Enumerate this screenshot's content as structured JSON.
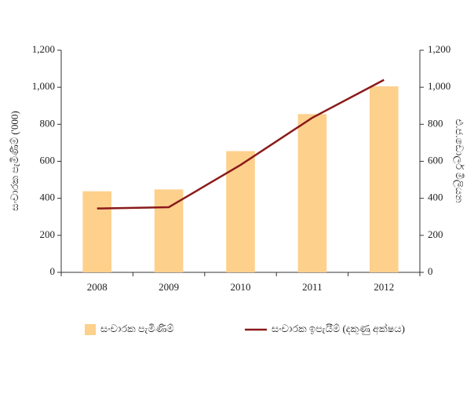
{
  "chart_data": {
    "type": "bar+line",
    "categories": [
      "2008",
      "2009",
      "2010",
      "2011",
      "2012"
    ],
    "series": [
      {
        "name": "සංචාරක පැමිණීම්",
        "type": "bar",
        "color": "#fdd08c",
        "values": [
          438,
          448,
          655,
          855,
          1005
        ]
      },
      {
        "name": "සංචාරක ඉපැයීම් (දකුණු අක්ෂය)",
        "type": "line",
        "axis": "y2",
        "color": "#8b1a1a",
        "values": [
          345,
          352,
          580,
          835,
          1040
        ]
      }
    ],
    "ylabel": "සංචාරක පැමිණීම් ('000)",
    "y2label": "එ.ජ.ඩොලර් මිලියන",
    "ylim": [
      0,
      1200
    ],
    "yticks": [
      0,
      200,
      400,
      600,
      800,
      {
        "value": 1000,
        "label": "1,000"
      },
      {
        "value": 1200,
        "label": "1,200"
      }
    ],
    "y2lim": [
      0,
      1200
    ],
    "y2ticks": [
      0,
      200,
      400,
      600,
      800,
      {
        "value": 1000,
        "label": "1,000"
      },
      {
        "value": 1200,
        "label": "1,200"
      }
    ],
    "legend": "bottom"
  }
}
